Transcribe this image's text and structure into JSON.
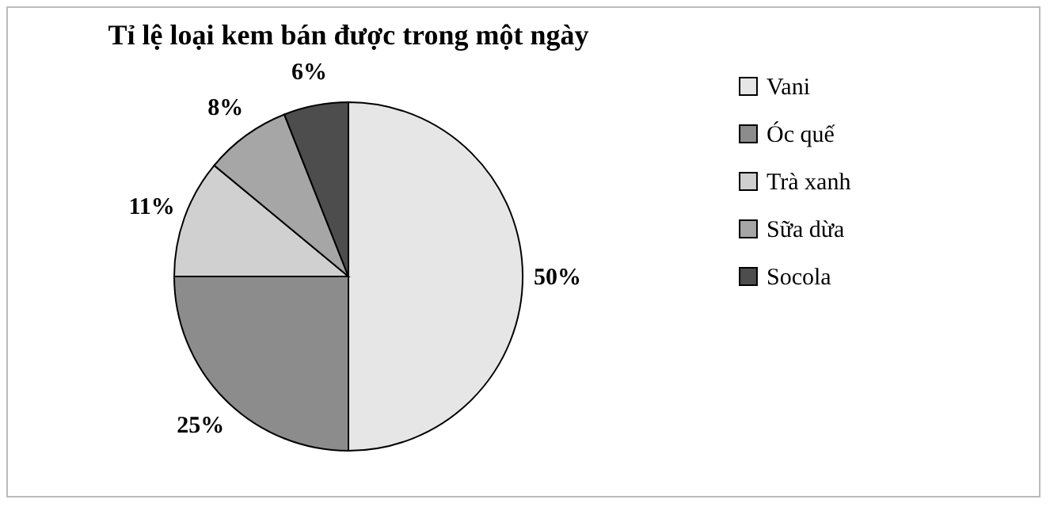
{
  "chart_data": {
    "type": "pie",
    "title": "Tỉ lệ loại kem bán được trong một ngày",
    "categories": [
      "Vani",
      "Óc quế",
      "Trà xanh",
      "Sữa dừa",
      "Socola"
    ],
    "values": [
      50,
      25,
      11,
      8,
      6
    ],
    "colors": [
      "#e6e6e6",
      "#8c8c8c",
      "#d0d0d0",
      "#a6a6a6",
      "#4d4d4d"
    ],
    "value_labels": [
      "50%",
      "25%",
      "11%",
      "8%",
      "6%"
    ],
    "legend": "right"
  }
}
